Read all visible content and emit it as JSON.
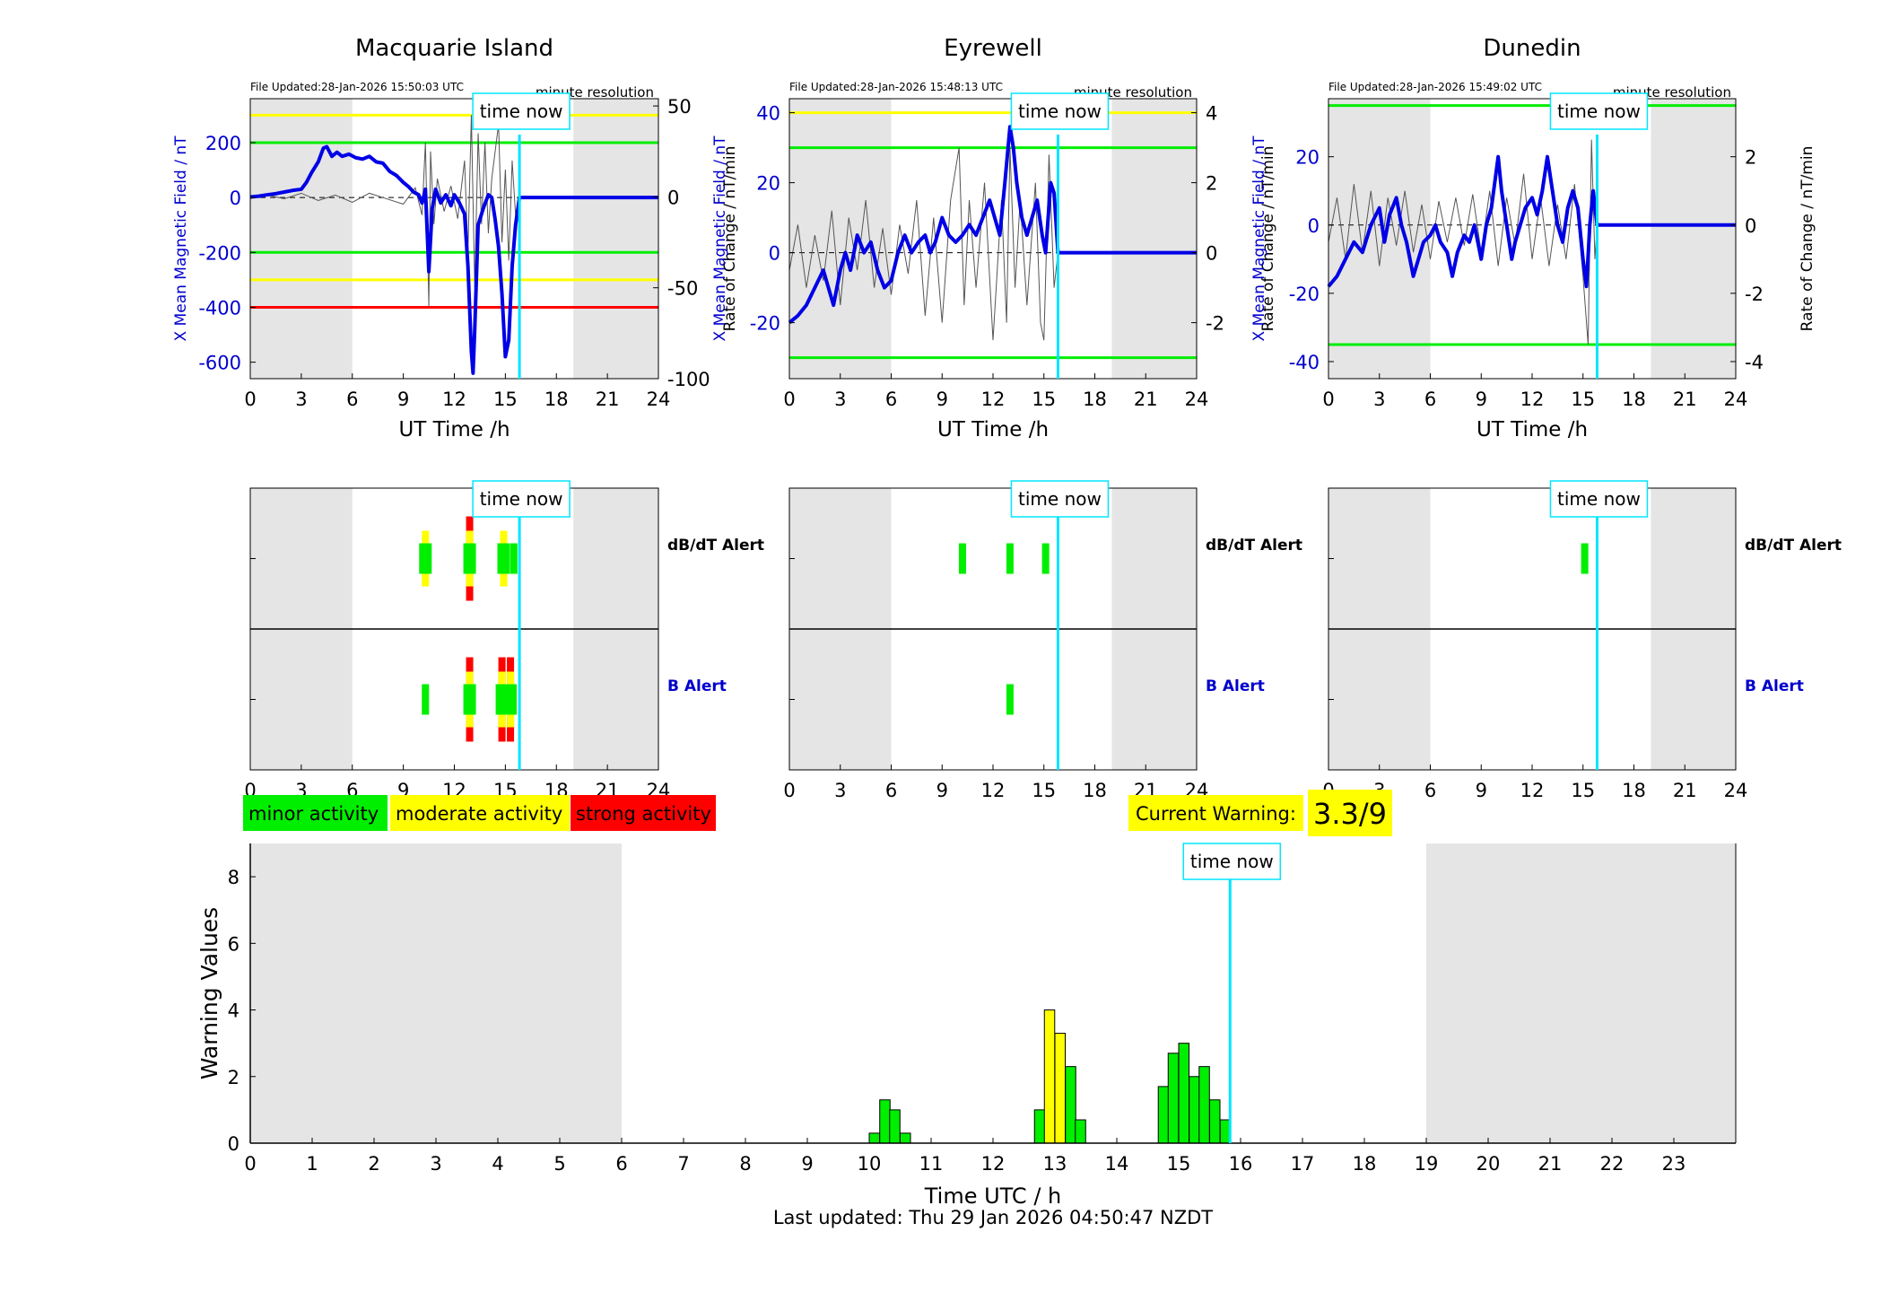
{
  "common": {
    "time_now_label": "time now",
    "time_now_hour": 15.83,
    "night_shading": [
      [
        0,
        6
      ],
      [
        19,
        24
      ]
    ],
    "x_ticks": [
      0,
      3,
      6,
      9,
      12,
      15,
      18,
      21,
      24
    ],
    "x_label": "UT Time /h",
    "resolution_label": "minute resolution",
    "left_axis_label": "X Mean Magnetic Field / nT",
    "right_axis_label": "Rate of Change / nT/min",
    "dbdt_alert_label": "dB/dT Alert",
    "b_alert_label": "B Alert",
    "colors": {
      "field": "#0000e6",
      "rate": "#555555",
      "time_now": "#00e5ff",
      "night": "#e5e5e5",
      "minor": "#00ee00",
      "moderate": "#ffff00",
      "strong": "#ff0000",
      "axis_blue": "#0000cc"
    }
  },
  "stations": [
    {
      "name": "Macquarie Island",
      "file_updated": "File Updated:28-Jan-2026 15:50:03 UTC",
      "left_ylim": [
        -660,
        360
      ],
      "right_ylim": [
        -100,
        54
      ],
      "left_ticks": [
        -600,
        -400,
        -200,
        0,
        200
      ],
      "right_ticks": [
        -100,
        -50,
        0,
        50
      ],
      "thresholds": [
        {
          "value": 300,
          "color": "#ffff00"
        },
        {
          "value": 200,
          "color": "#00ee00"
        },
        {
          "value": -200,
          "color": "#00ee00"
        },
        {
          "value": -300,
          "color": "#ffff00"
        },
        {
          "value": -400,
          "color": "#ff0000"
        }
      ],
      "field_series": [
        [
          0,
          2
        ],
        [
          0.5,
          5
        ],
        [
          1,
          10
        ],
        [
          1.5,
          14
        ],
        [
          2,
          20
        ],
        [
          2.5,
          26
        ],
        [
          3,
          30
        ],
        [
          3.3,
          55
        ],
        [
          3.6,
          90
        ],
        [
          4,
          130
        ],
        [
          4.3,
          180
        ],
        [
          4.5,
          185
        ],
        [
          4.8,
          150
        ],
        [
          5.1,
          165
        ],
        [
          5.4,
          150
        ],
        [
          5.8,
          158
        ],
        [
          6.2,
          145
        ],
        [
          6.6,
          140
        ],
        [
          7,
          150
        ],
        [
          7.4,
          130
        ],
        [
          7.8,
          125
        ],
        [
          8.2,
          95
        ],
        [
          8.6,
          80
        ],
        [
          9,
          55
        ],
        [
          9.3,
          40
        ],
        [
          9.6,
          20
        ],
        [
          9.9,
          10
        ],
        [
          10.1,
          -20
        ],
        [
          10.3,
          30
        ],
        [
          10.5,
          -270
        ],
        [
          10.7,
          -40
        ],
        [
          10.9,
          30
        ],
        [
          11.2,
          -20
        ],
        [
          11.5,
          10
        ],
        [
          11.8,
          -30
        ],
        [
          12,
          10
        ],
        [
          12.3,
          -20
        ],
        [
          12.6,
          -60
        ],
        [
          12.8,
          -250
        ],
        [
          13,
          -560
        ],
        [
          13.1,
          -640
        ],
        [
          13.2,
          -480
        ],
        [
          13.4,
          -100
        ],
        [
          13.7,
          -40
        ],
        [
          14,
          10
        ],
        [
          14.2,
          0
        ],
        [
          14.4,
          -80
        ],
        [
          14.6,
          -180
        ],
        [
          14.8,
          -350
        ],
        [
          15,
          -580
        ],
        [
          15.2,
          -520
        ],
        [
          15.4,
          -250
        ],
        [
          15.6,
          -100
        ],
        [
          15.83,
          0
        ],
        [
          24,
          0
        ]
      ],
      "rate_series": [
        [
          0,
          0
        ],
        [
          1,
          1
        ],
        [
          2,
          -1
        ],
        [
          3,
          2
        ],
        [
          4,
          -2
        ],
        [
          5,
          1
        ],
        [
          6,
          -3
        ],
        [
          7,
          2
        ],
        [
          8,
          -1
        ],
        [
          9,
          -4
        ],
        [
          9.7,
          5
        ],
        [
          10.1,
          -10
        ],
        [
          10.3,
          30
        ],
        [
          10.5,
          -60
        ],
        [
          10.6,
          25
        ],
        [
          10.8,
          -15
        ],
        [
          11,
          10
        ],
        [
          11.4,
          -8
        ],
        [
          11.8,
          6
        ],
        [
          12.2,
          -12
        ],
        [
          12.6,
          20
        ],
        [
          12.8,
          -30
        ],
        [
          13,
          45
        ],
        [
          13.2,
          -50
        ],
        [
          13.4,
          35
        ],
        [
          13.6,
          -15
        ],
        [
          13.8,
          30
        ],
        [
          14,
          -20
        ],
        [
          14.2,
          10
        ],
        [
          14.6,
          40
        ],
        [
          14.8,
          -25
        ],
        [
          15,
          15
        ],
        [
          15.2,
          -35
        ],
        [
          15.4,
          20
        ],
        [
          15.6,
          -10
        ],
        [
          15.83,
          0
        ]
      ],
      "dbdt_alerts": [
        {
          "hour": 10.3,
          "level": 2
        },
        {
          "hour": 12.9,
          "level": 3
        },
        {
          "hour": 14.9,
          "level": 2
        },
        {
          "hour": 15.5,
          "level": 1
        }
      ],
      "b_alerts": [
        {
          "hour": 10.3,
          "level": 1
        },
        {
          "hour": 12.9,
          "level": 3
        },
        {
          "hour": 14.8,
          "level": 3
        },
        {
          "hour": 15.3,
          "level": 3
        }
      ]
    },
    {
      "name": "Eyrewell",
      "file_updated": "File Updated:28-Jan-2026 15:48:13 UTC",
      "left_ylim": [
        -36,
        44
      ],
      "right_ylim": [
        -3.6,
        4.4
      ],
      "left_ticks": [
        -20,
        0,
        20,
        40
      ],
      "right_ticks": [
        -2,
        0,
        2,
        4
      ],
      "thresholds": [
        {
          "value": 40,
          "color": "#ffff00"
        },
        {
          "value": 30,
          "color": "#00ee00"
        },
        {
          "value": -30,
          "color": "#00ee00"
        }
      ],
      "field_series": [
        [
          0,
          -20
        ],
        [
          0.5,
          -18
        ],
        [
          1,
          -15
        ],
        [
          1.5,
          -10
        ],
        [
          2,
          -5
        ],
        [
          2.3,
          -10
        ],
        [
          2.6,
          -15
        ],
        [
          3,
          -5
        ],
        [
          3.3,
          0
        ],
        [
          3.6,
          -5
        ],
        [
          4,
          5
        ],
        [
          4.4,
          0
        ],
        [
          4.8,
          3
        ],
        [
          5.2,
          -5
        ],
        [
          5.6,
          -10
        ],
        [
          6,
          -8
        ],
        [
          6.4,
          0
        ],
        [
          6.8,
          5
        ],
        [
          7.2,
          0
        ],
        [
          7.6,
          3
        ],
        [
          8,
          5
        ],
        [
          8.3,
          0
        ],
        [
          8.6,
          3
        ],
        [
          9,
          10
        ],
        [
          9.4,
          5
        ],
        [
          9.8,
          3
        ],
        [
          10.2,
          5
        ],
        [
          10.6,
          8
        ],
        [
          11,
          5
        ],
        [
          11.4,
          10
        ],
        [
          11.8,
          15
        ],
        [
          12.1,
          10
        ],
        [
          12.4,
          5
        ],
        [
          12.7,
          20
        ],
        [
          13,
          36
        ],
        [
          13.2,
          30
        ],
        [
          13.4,
          20
        ],
        [
          13.7,
          10
        ],
        [
          14,
          5
        ],
        [
          14.3,
          10
        ],
        [
          14.6,
          15
        ],
        [
          14.9,
          5
        ],
        [
          15.1,
          0
        ],
        [
          15.4,
          20
        ],
        [
          15.6,
          17
        ],
        [
          15.83,
          0
        ],
        [
          24,
          0
        ]
      ],
      "rate_series": [
        [
          0,
          -0.5
        ],
        [
          0.5,
          0.8
        ],
        [
          1,
          -1
        ],
        [
          1.5,
          0.5
        ],
        [
          2,
          -0.8
        ],
        [
          2.5,
          1.2
        ],
        [
          3,
          -1.5
        ],
        [
          3.5,
          1
        ],
        [
          4,
          -0.5
        ],
        [
          4.5,
          1.5
        ],
        [
          5,
          -1
        ],
        [
          5.5,
          0.7
        ],
        [
          6,
          -1.2
        ],
        [
          6.5,
          0.8
        ],
        [
          7,
          -0.6
        ],
        [
          7.5,
          1.5
        ],
        [
          8,
          -1.8
        ],
        [
          8.5,
          1
        ],
        [
          9,
          -2
        ],
        [
          9.5,
          1.5
        ],
        [
          10,
          3
        ],
        [
          10.3,
          -1.5
        ],
        [
          10.6,
          1.5
        ],
        [
          11,
          -1
        ],
        [
          11.5,
          2
        ],
        [
          12,
          -2.5
        ],
        [
          12.5,
          1.5
        ],
        [
          12.8,
          -2
        ],
        [
          13,
          3
        ],
        [
          13.3,
          -1
        ],
        [
          13.6,
          1.5
        ],
        [
          14,
          -1.5
        ],
        [
          14.5,
          2
        ],
        [
          14.8,
          -2
        ],
        [
          15,
          -2.5
        ],
        [
          15.3,
          2.8
        ],
        [
          15.6,
          -1
        ],
        [
          15.83,
          0
        ]
      ],
      "dbdt_alerts": [
        {
          "hour": 10.2,
          "level": 1
        },
        {
          "hour": 13.0,
          "level": 1
        },
        {
          "hour": 15.1,
          "level": 1
        }
      ],
      "b_alerts": [
        {
          "hour": 13.0,
          "level": 1
        }
      ]
    },
    {
      "name": "Dunedin",
      "file_updated": "File Updated:28-Jan-2026 15:49:02 UTC",
      "left_ylim": [
        -45,
        37
      ],
      "right_ylim": [
        -4.5,
        3.7
      ],
      "left_ticks": [
        -40,
        -20,
        0,
        20
      ],
      "right_ticks": [
        -4,
        -2,
        0,
        2
      ],
      "thresholds": [
        {
          "value": 35,
          "color": "#00ee00"
        },
        {
          "value": -35,
          "color": "#00ee00"
        }
      ],
      "field_series": [
        [
          0,
          -18
        ],
        [
          0.5,
          -15
        ],
        [
          1,
          -10
        ],
        [
          1.5,
          -5
        ],
        [
          2,
          -8
        ],
        [
          2.5,
          0
        ],
        [
          3,
          5
        ],
        [
          3.3,
          -5
        ],
        [
          3.6,
          3
        ],
        [
          4,
          8
        ],
        [
          4.3,
          0
        ],
        [
          4.6,
          -5
        ],
        [
          5,
          -15
        ],
        [
          5.3,
          -10
        ],
        [
          5.6,
          -5
        ],
        [
          6,
          -3
        ],
        [
          6.3,
          0
        ],
        [
          6.6,
          -5
        ],
        [
          7,
          -8
        ],
        [
          7.3,
          -15
        ],
        [
          7.6,
          -8
        ],
        [
          8,
          -3
        ],
        [
          8.3,
          -5
        ],
        [
          8.6,
          0
        ],
        [
          9,
          -10
        ],
        [
          9.3,
          0
        ],
        [
          9.6,
          5
        ],
        [
          10,
          20
        ],
        [
          10.2,
          10
        ],
        [
          10.5,
          0
        ],
        [
          10.8,
          -10
        ],
        [
          11,
          -5
        ],
        [
          11.3,
          0
        ],
        [
          11.6,
          5
        ],
        [
          12,
          8
        ],
        [
          12.3,
          3
        ],
        [
          12.6,
          10
        ],
        [
          12.9,
          20
        ],
        [
          13.2,
          10
        ],
        [
          13.5,
          0
        ],
        [
          13.8,
          -5
        ],
        [
          14.1,
          5
        ],
        [
          14.4,
          10
        ],
        [
          14.7,
          5
        ],
        [
          15,
          -10
        ],
        [
          15.2,
          -18
        ],
        [
          15.4,
          0
        ],
        [
          15.6,
          10
        ],
        [
          15.83,
          0
        ],
        [
          24,
          0
        ]
      ],
      "rate_series": [
        [
          0,
          -0.5
        ],
        [
          0.5,
          0.8
        ],
        [
          1,
          -1
        ],
        [
          1.5,
          1.2
        ],
        [
          2,
          -0.8
        ],
        [
          2.5,
          1
        ],
        [
          3,
          -1.2
        ],
        [
          3.5,
          0.8
        ],
        [
          4,
          -0.6
        ],
        [
          4.5,
          1
        ],
        [
          5,
          -0.8
        ],
        [
          5.5,
          0.6
        ],
        [
          6,
          -1
        ],
        [
          6.5,
          0.7
        ],
        [
          7,
          -0.5
        ],
        [
          7.5,
          0.8
        ],
        [
          8,
          -0.6
        ],
        [
          8.5,
          0.9
        ],
        [
          9,
          -0.8
        ],
        [
          9.5,
          1
        ],
        [
          10,
          -1.2
        ],
        [
          10.5,
          0.8
        ],
        [
          11,
          -0.6
        ],
        [
          11.5,
          1.5
        ],
        [
          12,
          -1
        ],
        [
          12.5,
          0.8
        ],
        [
          13,
          -1.2
        ],
        [
          13.5,
          0.6
        ],
        [
          14,
          -1
        ],
        [
          14.5,
          1.2
        ],
        [
          15,
          -1.5
        ],
        [
          15.3,
          -3.5
        ],
        [
          15.5,
          2.5
        ],
        [
          15.7,
          -1
        ],
        [
          15.83,
          0
        ]
      ],
      "dbdt_alerts": [
        {
          "hour": 15.1,
          "level": 1
        }
      ],
      "b_alerts": []
    }
  ],
  "legend": {
    "minor": "minor activity",
    "moderate": "moderate activity",
    "strong": "strong activity"
  },
  "current_warning": {
    "label": "Current Warning:",
    "value": "3.3/9"
  },
  "chart_data": {
    "type": "bar",
    "ylabel": "Warning Values",
    "xlabel": "Time UTC / h",
    "ylim": [
      0,
      9
    ],
    "xlim": [
      0,
      24
    ],
    "y_ticks": [
      0,
      2,
      4,
      6,
      8
    ],
    "x_ticks": [
      0,
      1,
      2,
      3,
      4,
      5,
      6,
      7,
      8,
      9,
      10,
      11,
      12,
      13,
      14,
      15,
      16,
      17,
      18,
      19,
      20,
      21,
      22,
      23
    ],
    "time_now_hour": 15.83,
    "night_shading": [
      [
        0,
        6
      ],
      [
        19,
        24
      ]
    ],
    "bar_width_h": 0.1667,
    "bars": [
      {
        "x": 10.0,
        "value": 0.3,
        "level": "minor"
      },
      {
        "x": 10.17,
        "value": 1.3,
        "level": "minor"
      },
      {
        "x": 10.33,
        "value": 1.0,
        "level": "minor"
      },
      {
        "x": 10.5,
        "value": 0.3,
        "level": "minor"
      },
      {
        "x": 12.67,
        "value": 1.0,
        "level": "minor"
      },
      {
        "x": 12.83,
        "value": 4.0,
        "level": "moderate"
      },
      {
        "x": 13.0,
        "value": 3.3,
        "level": "moderate"
      },
      {
        "x": 13.17,
        "value": 2.3,
        "level": "minor"
      },
      {
        "x": 13.33,
        "value": 0.7,
        "level": "minor"
      },
      {
        "x": 14.67,
        "value": 1.7,
        "level": "minor"
      },
      {
        "x": 14.83,
        "value": 2.7,
        "level": "minor"
      },
      {
        "x": 15.0,
        "value": 3.0,
        "level": "minor"
      },
      {
        "x": 15.17,
        "value": 2.0,
        "level": "minor"
      },
      {
        "x": 15.33,
        "value": 2.3,
        "level": "minor"
      },
      {
        "x": 15.5,
        "value": 1.3,
        "level": "minor"
      },
      {
        "x": 15.67,
        "value": 0.7,
        "level": "minor"
      }
    ]
  },
  "footer": {
    "last_updated": "Last updated: Thu 29 Jan 2026 04:50:47 NZDT"
  }
}
